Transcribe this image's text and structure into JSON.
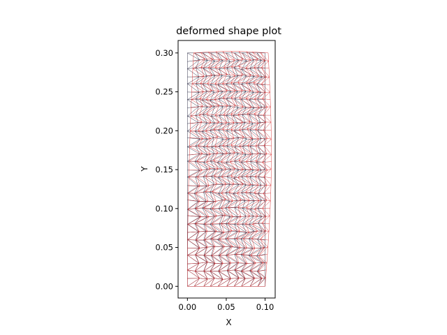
{
  "chart_data": {
    "type": "mesh",
    "title": "deformed shape plot",
    "xlabel": "X",
    "ylabel": "Y",
    "xlim": [
      -0.012,
      0.113
    ],
    "ylim": [
      -0.015,
      0.316
    ],
    "xticks": [
      0.0,
      0.05,
      0.1
    ],
    "xtick_labels": [
      "0.00",
      "0.05",
      "0.10"
    ],
    "yticks": [
      0.0,
      0.05,
      0.1,
      0.15,
      0.2,
      0.25,
      0.3
    ],
    "ytick_labels": [
      "0.00",
      "0.05",
      "0.10",
      "0.15",
      "0.20",
      "0.25",
      "0.30"
    ],
    "domain": {
      "x": [
        0.0,
        0.1
      ],
      "y": [
        0.0,
        0.3
      ]
    },
    "grid": false,
    "legend": "none",
    "series": [
      {
        "role": "undeformed",
        "color": "#1f1f3a"
      },
      {
        "role": "deformed",
        "color": "#d62728"
      }
    ]
  }
}
